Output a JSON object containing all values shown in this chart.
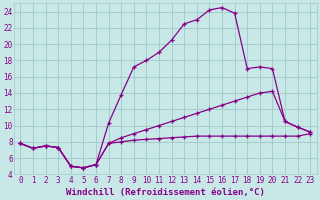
{
  "background_color": "#c8e8e8",
  "grid_color": "#a0c8c8",
  "line_color": "#880088",
  "xlabel": "Windchill (Refroidissement éolien,°C)",
  "xlim": [
    -0.5,
    23.5
  ],
  "ylim": [
    4,
    25
  ],
  "yticks": [
    4,
    6,
    8,
    10,
    12,
    14,
    16,
    18,
    20,
    22,
    24
  ],
  "xticks": [
    0,
    1,
    2,
    3,
    4,
    5,
    6,
    7,
    8,
    9,
    10,
    11,
    12,
    13,
    14,
    15,
    16,
    17,
    18,
    19,
    20,
    21,
    22,
    23
  ],
  "series1_x": [
    0,
    1,
    2,
    3,
    4,
    5,
    6,
    7,
    8,
    9,
    10,
    11,
    12,
    13,
    14,
    15,
    16,
    17,
    18,
    19,
    20,
    21,
    22,
    23
  ],
  "series1_y": [
    7.8,
    7.2,
    7.5,
    7.3,
    5.0,
    4.8,
    5.2,
    7.8,
    8.0,
    8.2,
    8.3,
    8.4,
    8.5,
    8.6,
    8.7,
    8.7,
    8.7,
    8.7,
    8.7,
    8.7,
    8.7,
    8.7,
    8.7,
    9.0
  ],
  "series2_x": [
    0,
    1,
    2,
    3,
    4,
    5,
    6,
    7,
    8,
    9,
    10,
    11,
    12,
    13,
    14,
    15,
    16,
    17,
    18,
    19,
    20,
    21,
    22,
    23
  ],
  "series2_y": [
    7.8,
    7.2,
    7.5,
    7.3,
    5.0,
    4.8,
    5.2,
    7.8,
    8.5,
    9.0,
    9.5,
    10.0,
    10.5,
    11.0,
    11.5,
    12.0,
    12.5,
    13.0,
    13.5,
    14.0,
    14.2,
    10.5,
    9.8,
    9.2
  ],
  "series3_x": [
    0,
    1,
    2,
    3,
    4,
    5,
    6,
    7,
    8,
    9,
    10,
    11,
    12,
    13,
    14,
    15,
    16,
    17,
    18,
    19,
    20,
    21,
    22,
    23
  ],
  "series3_y": [
    7.8,
    7.2,
    7.5,
    7.3,
    5.0,
    4.8,
    5.2,
    10.3,
    13.8,
    17.2,
    18.0,
    19.0,
    20.5,
    22.5,
    23.0,
    24.2,
    24.5,
    23.8,
    17.0,
    17.2,
    17.0,
    10.5,
    9.8,
    9.2
  ],
  "tick_font_size": 5.5,
  "label_font_size": 6.5
}
